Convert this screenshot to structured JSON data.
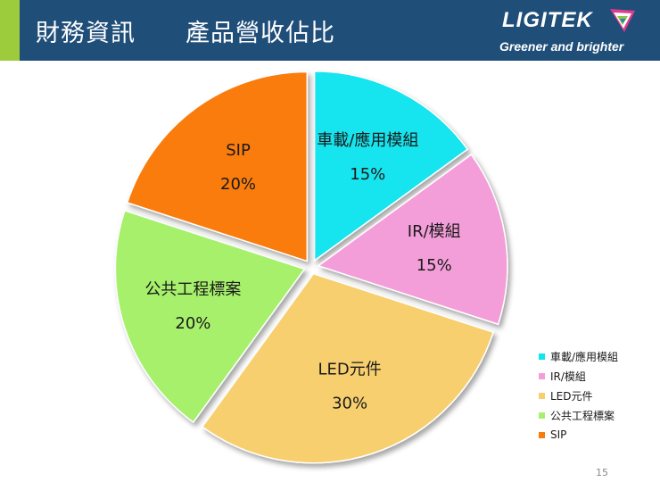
{
  "header": {
    "title": "財務資訊　　產品營收佔比",
    "logo_name": "LIGITEK",
    "logo_tagline": "Greener and brighter",
    "logo_icon": "ligitek-emblem-icon",
    "bar_color": "#1f4e79",
    "accent_color": "#9ccc3c"
  },
  "chart_data": {
    "type": "pie",
    "title": "",
    "legend_position": "bottom-right",
    "unit": "%",
    "slices": [
      {
        "name": "車載/應用模組",
        "value": 15,
        "label": "15%",
        "color": "#14e4ee"
      },
      {
        "name": "IR/模組",
        "value": 15,
        "label": "15%",
        "color": "#f49ed9"
      },
      {
        "name": "LED元件",
        "value": 30,
        "label": "30%",
        "color": "#f7cf6e"
      },
      {
        "name": "公共工程標案",
        "value": 20,
        "label": "20%",
        "color": "#a6f06c"
      },
      {
        "name": "SIP",
        "value": 20,
        "label": "20%",
        "color": "#f97b0d"
      }
    ]
  },
  "footer": {
    "page_number": "15"
  }
}
